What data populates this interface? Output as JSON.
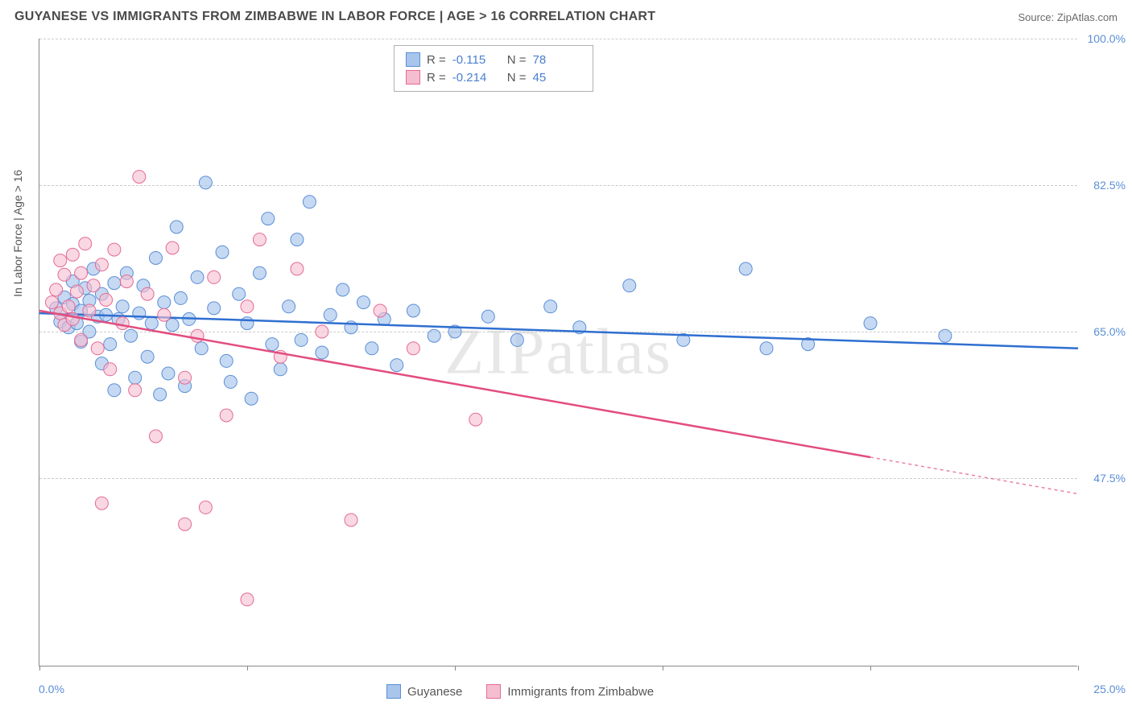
{
  "header": {
    "title": "GUYANESE VS IMMIGRANTS FROM ZIMBABWE IN LABOR FORCE | AGE > 16 CORRELATION CHART",
    "source": "Source: ZipAtlas.com"
  },
  "chart": {
    "type": "scatter",
    "y_axis_title": "In Labor Force | Age > 16",
    "watermark": "ZIPatlas",
    "xlim": [
      0,
      25
    ],
    "ylim": [
      25,
      100
    ],
    "xticks": [
      0,
      5,
      10,
      15,
      20,
      25
    ],
    "y_gridlines": [
      47.5,
      65.0,
      82.5,
      100.0
    ],
    "y_labels": [
      "47.5%",
      "65.0%",
      "82.5%",
      "100.0%"
    ],
    "x_min_label": "0.0%",
    "x_max_label": "25.0%",
    "background_color": "#ffffff",
    "grid_color": "#cccccc",
    "axis_color": "#888888",
    "series": [
      {
        "key": "guyanese",
        "name": "Guyanese",
        "marker_fill": "#a8c5ec",
        "marker_stroke": "#5b8fd6",
        "marker_opacity": 0.65,
        "marker_radius": 8,
        "line_color": "#2f6fd0",
        "line_width": 2.5,
        "R": "-0.115",
        "N": "78",
        "regression": {
          "x1": 0,
          "y1": 67.2,
          "x2": 25,
          "y2": 63.0
        },
        "extrap_from_x": 25,
        "points": [
          [
            0.4,
            67.8
          ],
          [
            0.5,
            66.2
          ],
          [
            0.6,
            69.1
          ],
          [
            0.7,
            65.5
          ],
          [
            0.8,
            68.3
          ],
          [
            0.8,
            71.0
          ],
          [
            0.9,
            66.0
          ],
          [
            1.0,
            67.5
          ],
          [
            1.0,
            63.8
          ],
          [
            1.1,
            70.2
          ],
          [
            1.2,
            68.7
          ],
          [
            1.2,
            65.0
          ],
          [
            1.3,
            72.5
          ],
          [
            1.4,
            66.8
          ],
          [
            1.5,
            69.5
          ],
          [
            1.5,
            61.2
          ],
          [
            1.6,
            67.0
          ],
          [
            1.7,
            63.5
          ],
          [
            1.8,
            70.8
          ],
          [
            1.8,
            58.0
          ],
          [
            1.9,
            66.5
          ],
          [
            2.0,
            68.0
          ],
          [
            2.1,
            72.0
          ],
          [
            2.2,
            64.5
          ],
          [
            2.3,
            59.5
          ],
          [
            2.4,
            67.2
          ],
          [
            2.5,
            70.5
          ],
          [
            2.6,
            62.0
          ],
          [
            2.7,
            66.0
          ],
          [
            2.8,
            73.8
          ],
          [
            2.9,
            57.5
          ],
          [
            3.0,
            68.5
          ],
          [
            3.1,
            60.0
          ],
          [
            3.2,
            65.8
          ],
          [
            3.3,
            77.5
          ],
          [
            3.4,
            69.0
          ],
          [
            3.5,
            58.5
          ],
          [
            3.6,
            66.5
          ],
          [
            3.8,
            71.5
          ],
          [
            3.9,
            63.0
          ],
          [
            4.0,
            82.8
          ],
          [
            4.2,
            67.8
          ],
          [
            4.4,
            74.5
          ],
          [
            4.5,
            61.5
          ],
          [
            4.6,
            59.0
          ],
          [
            4.8,
            69.5
          ],
          [
            5.0,
            66.0
          ],
          [
            5.1,
            57.0
          ],
          [
            5.3,
            72.0
          ],
          [
            5.5,
            78.5
          ],
          [
            5.6,
            63.5
          ],
          [
            5.8,
            60.5
          ],
          [
            6.0,
            68.0
          ],
          [
            6.2,
            76.0
          ],
          [
            6.3,
            64.0
          ],
          [
            6.5,
            80.5
          ],
          [
            6.8,
            62.5
          ],
          [
            7.0,
            67.0
          ],
          [
            7.3,
            70.0
          ],
          [
            7.5,
            65.5
          ],
          [
            7.8,
            68.5
          ],
          [
            8.0,
            63.0
          ],
          [
            8.3,
            66.5
          ],
          [
            8.6,
            61.0
          ],
          [
            9.0,
            67.5
          ],
          [
            9.5,
            64.5
          ],
          [
            10.0,
            65.0
          ],
          [
            10.8,
            66.8
          ],
          [
            11.5,
            64.0
          ],
          [
            12.3,
            68.0
          ],
          [
            13.0,
            65.5
          ],
          [
            14.2,
            70.5
          ],
          [
            15.5,
            64.0
          ],
          [
            17.0,
            72.5
          ],
          [
            18.5,
            63.5
          ],
          [
            20.0,
            66.0
          ],
          [
            21.8,
            64.5
          ],
          [
            17.5,
            63.0
          ]
        ]
      },
      {
        "key": "zimbabwe",
        "name": "Immigrants from Zimbabwe",
        "marker_fill": "#f5bdd0",
        "marker_stroke": "#e56b94",
        "marker_opacity": 0.6,
        "marker_radius": 8,
        "line_color": "#e34d7e",
        "line_width": 2.5,
        "R": "-0.214",
        "N": "45",
        "regression": {
          "x1": 0,
          "y1": 67.5,
          "x2": 20,
          "y2": 50.0
        },
        "extrap_from_x": 20,
        "points": [
          [
            0.3,
            68.5
          ],
          [
            0.4,
            70.0
          ],
          [
            0.5,
            67.2
          ],
          [
            0.5,
            73.5
          ],
          [
            0.6,
            65.8
          ],
          [
            0.6,
            71.8
          ],
          [
            0.7,
            68.0
          ],
          [
            0.8,
            74.2
          ],
          [
            0.8,
            66.5
          ],
          [
            0.9,
            69.8
          ],
          [
            1.0,
            72.0
          ],
          [
            1.0,
            64.0
          ],
          [
            1.1,
            75.5
          ],
          [
            1.2,
            67.5
          ],
          [
            1.3,
            70.5
          ],
          [
            1.4,
            63.0
          ],
          [
            1.5,
            73.0
          ],
          [
            1.6,
            68.8
          ],
          [
            1.7,
            60.5
          ],
          [
            1.8,
            74.8
          ],
          [
            2.0,
            66.0
          ],
          [
            2.1,
            71.0
          ],
          [
            2.3,
            58.0
          ],
          [
            2.4,
            83.5
          ],
          [
            2.6,
            69.5
          ],
          [
            2.8,
            52.5
          ],
          [
            3.0,
            67.0
          ],
          [
            3.2,
            75.0
          ],
          [
            3.5,
            59.5
          ],
          [
            3.8,
            64.5
          ],
          [
            4.0,
            44.0
          ],
          [
            4.2,
            71.5
          ],
          [
            4.5,
            55.0
          ],
          [
            5.0,
            68.0
          ],
          [
            5.3,
            76.0
          ],
          [
            5.8,
            62.0
          ],
          [
            6.2,
            72.5
          ],
          [
            6.8,
            65.0
          ],
          [
            7.5,
            42.5
          ],
          [
            8.2,
            67.5
          ],
          [
            9.0,
            63.0
          ],
          [
            10.5,
            54.5
          ],
          [
            5.0,
            33.0
          ],
          [
            3.5,
            42.0
          ],
          [
            1.5,
            44.5
          ]
        ]
      }
    ]
  }
}
